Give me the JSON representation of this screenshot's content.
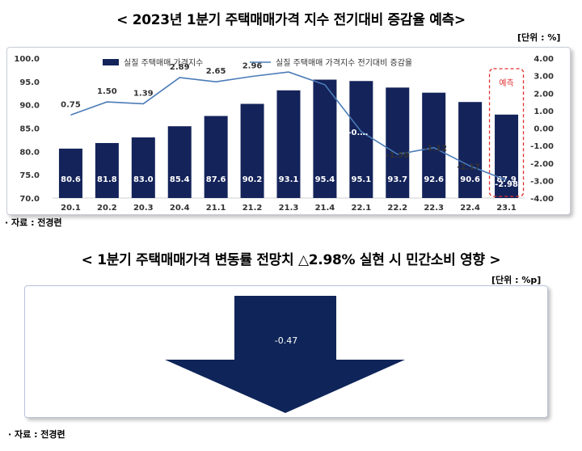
{
  "title_top": "< 2023년 1분기 주택매매가격 지수 전기대비 증감율 예측>",
  "unit_top": "[단위 : %]",
  "source_top": "· 자료 : 전경련",
  "title_bottom": "< 1분기 주택매매가격 변동률 전망치 △2.98% 실현 시 민간소비 영향 >",
  "unit_bottom": "[단위 : %p]",
  "source_bottom": "· 자료 : 전경련",
  "forecast_label": "예측",
  "colors": {
    "bar": "#14235a",
    "line": "#4a7bb7",
    "forecast_box": "#e03030",
    "arrow": "#0f2559"
  },
  "chart_data": {
    "type": "bar+line",
    "categories": [
      "20.1",
      "20.2",
      "20.3",
      "20.4",
      "21.1",
      "21.2",
      "21.3",
      "21.4",
      "22.1",
      "22.2",
      "22.3",
      "22.4",
      "23.1"
    ],
    "series": [
      {
        "name": "실질 주택매매 가격지수",
        "type": "bar",
        "axis": "left",
        "values": [
          80.6,
          81.8,
          83.0,
          85.4,
          87.6,
          90.2,
          93.1,
          95.4,
          95.1,
          93.7,
          92.6,
          90.6,
          87.9
        ],
        "labels": [
          "80.6",
          "81.8",
          "83.0",
          "85.4",
          "87.6",
          "90.2",
          "93.1",
          "95.4",
          "95.1",
          "93.7",
          "92.6",
          "90.6",
          "87.9"
        ]
      },
      {
        "name": "실질 주택매매 가격지수 전기대비 증감율",
        "type": "line",
        "axis": "right",
        "values": [
          0.75,
          1.5,
          1.39,
          2.89,
          2.65,
          2.96,
          3.21,
          2.48,
          -0.2,
          -1.5,
          -1.12,
          -2.17,
          -2.98
        ],
        "labels": [
          "0.75",
          "1.50",
          "1.39",
          "2.89",
          "2.65",
          "2.96",
          "3.21",
          "2.48",
          "-0.…",
          "-1.50",
          "-1.12",
          "-2.17",
          "-2.98"
        ]
      }
    ],
    "ylim_left": [
      70.0,
      100.0
    ],
    "yticks_left": [
      "70.0",
      "75.0",
      "80.0",
      "85.0",
      "90.0",
      "95.0",
      "100.0"
    ],
    "ylim_right": [
      -4.0,
      4.0
    ],
    "yticks_right": [
      "-4.00",
      "-3.00",
      "-2.00",
      "-1.00",
      "0.00",
      "1.00",
      "2.00",
      "3.00",
      "4.00"
    ],
    "legend_position": "top",
    "grid": false
  },
  "impact": {
    "value": "-0.47"
  }
}
